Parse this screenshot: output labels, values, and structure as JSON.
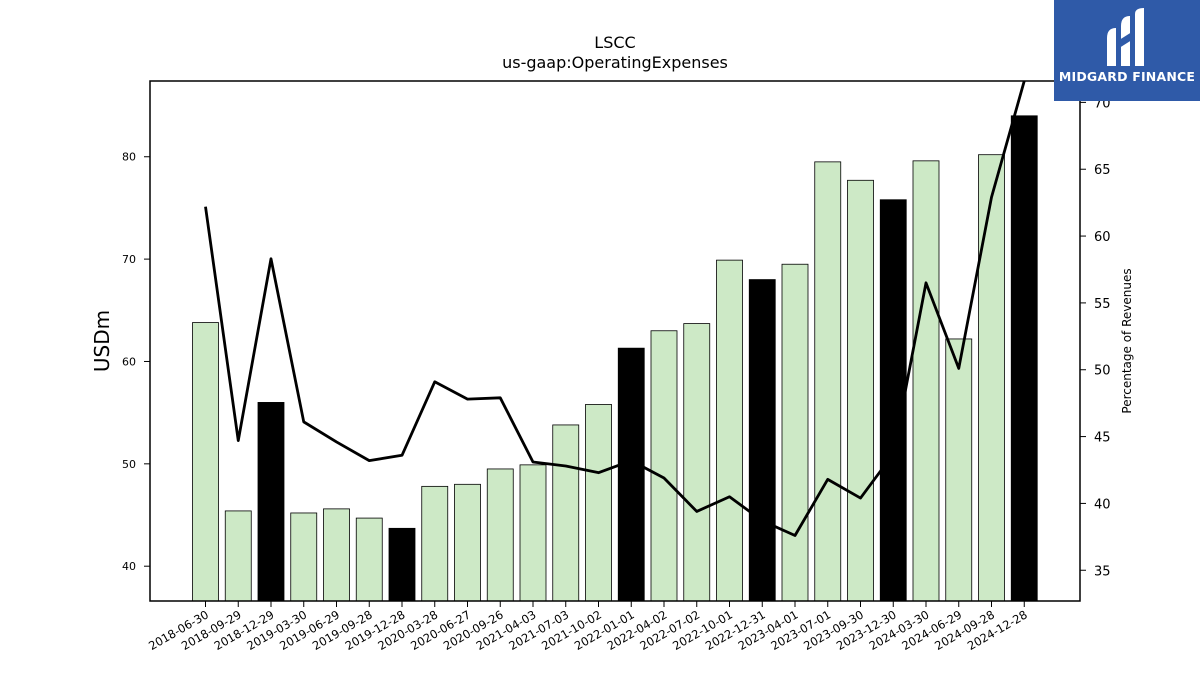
{
  "header": {
    "title": "LSCC",
    "subtitle": "us-gaap:OperatingExpenses"
  },
  "logo": {
    "text": "MIDGARD FINANCE",
    "color": "#2f5aa8"
  },
  "chart_data": {
    "type": "bar",
    "title": "LSCC",
    "subtitle": "us-gaap:OperatingExpenses",
    "ylabel": "USDm",
    "y2label": "Percentage of Revenues",
    "ylim": [
      36.6,
      87.4
    ],
    "y2lim": [
      32.7,
      71.6
    ],
    "yticks": [
      40,
      50,
      60,
      70,
      80
    ],
    "y2ticks": [
      35,
      40,
      45,
      50,
      55,
      60,
      65,
      70
    ],
    "categories": [
      "2018-06-30",
      "2018-09-29",
      "2018-12-29",
      "2019-03-30",
      "2019-06-29",
      "2019-09-28",
      "2019-12-28",
      "2020-03-28",
      "2020-06-27",
      "2020-09-26",
      "2021-04-03",
      "2021-07-03",
      "2021-10-02",
      "2022-01-01",
      "2022-04-02",
      "2022-07-02",
      "2022-10-01",
      "2022-12-31",
      "2023-04-01",
      "2023-07-01",
      "2023-09-30",
      "2023-12-30",
      "2024-03-30",
      "2024-06-29",
      "2024-09-28",
      "2024-12-28"
    ],
    "series": [
      {
        "type": "bar",
        "values": [
          63.8,
          45.4,
          56.0,
          45.2,
          45.6,
          44.7,
          43.7,
          47.8,
          48.0,
          49.5,
          49.9,
          53.8,
          55.8,
          61.3,
          63.0,
          63.7,
          69.9,
          68.0,
          69.5,
          79.5,
          77.7,
          75.8,
          79.6,
          62.2,
          80.2,
          84.0
        ],
        "highlight": [
          false,
          false,
          true,
          false,
          false,
          false,
          true,
          false,
          false,
          false,
          false,
          false,
          false,
          true,
          false,
          false,
          false,
          true,
          false,
          false,
          false,
          true,
          false,
          false,
          false,
          true
        ],
        "color": "#cde9c6",
        "highlight_color": "#000000"
      },
      {
        "type": "line",
        "axis": "right",
        "values": [
          62.2,
          44.7,
          58.3,
          46.1,
          44.6,
          43.2,
          43.6,
          49.1,
          47.8,
          47.9,
          43.1,
          42.8,
          42.3,
          43.2,
          41.9,
          39.4,
          40.5,
          38.7,
          37.6,
          41.8,
          40.4,
          43.7,
          56.5,
          50.1,
          62.9,
          71.6
        ],
        "color": "#000000"
      }
    ],
    "grid": false,
    "legend": "none"
  }
}
